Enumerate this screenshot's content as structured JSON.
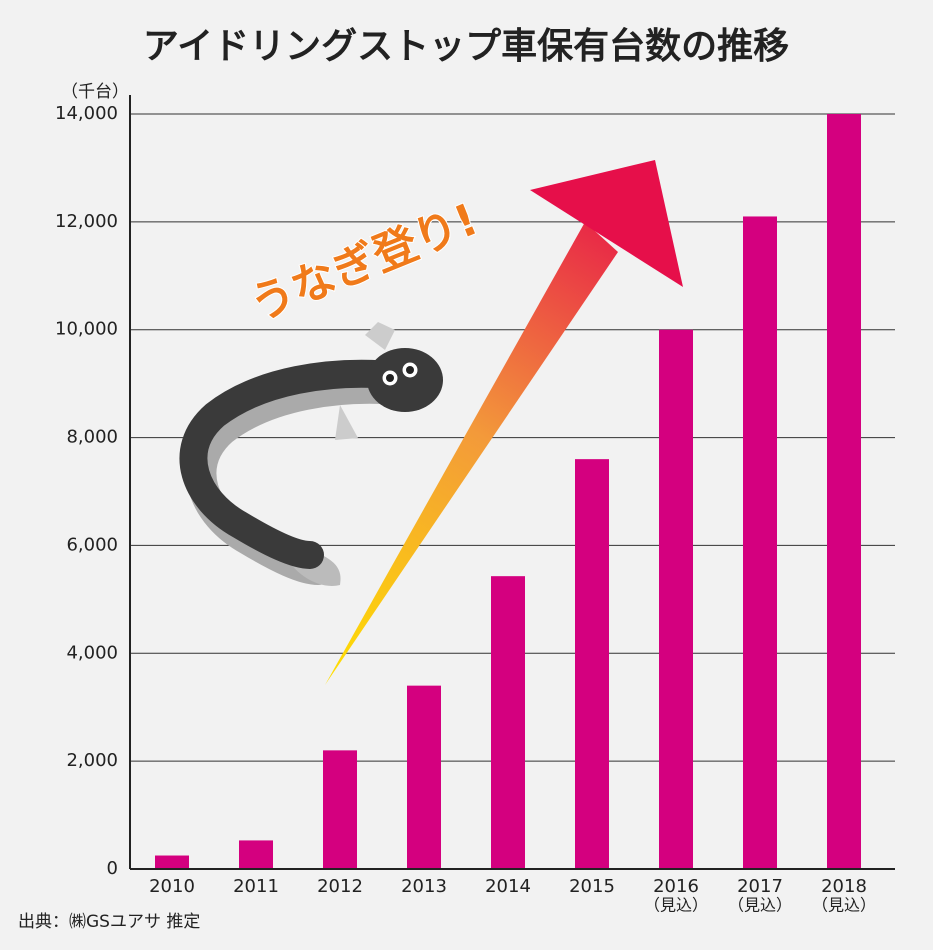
{
  "chart_data": {
    "type": "bar",
    "title": "アイドリングストップ車保有台数の推移",
    "y_unit": "（千台）",
    "annotation": "うなぎ登り!",
    "source": "出典：㈱GSユアサ 推定",
    "categories": [
      "2010",
      "2011",
      "2012",
      "2013",
      "2014",
      "2015",
      "2016",
      "2017",
      "2018"
    ],
    "category_notes": [
      null,
      null,
      null,
      null,
      null,
      null,
      "（見込）",
      "（見込）",
      "（見込）"
    ],
    "values": [
      250,
      530,
      2200,
      3400,
      5430,
      7600,
      10000,
      12100,
      14000
    ],
    "color": "#d4007f",
    "ylim": [
      0,
      14000
    ],
    "yticks": [
      0,
      {
        "value": 2000,
        "label": "2,000"
      },
      {
        "value": 4000,
        "label": "4,000"
      },
      {
        "value": 6000,
        "label": "6,000"
      },
      {
        "value": 8000,
        "label": "8,000"
      },
      {
        "value": 10000,
        "label": "10,000"
      },
      {
        "value": 12000,
        "label": "12,000"
      },
      {
        "value": 14000,
        "label": "14,000"
      }
    ],
    "grid": true
  }
}
